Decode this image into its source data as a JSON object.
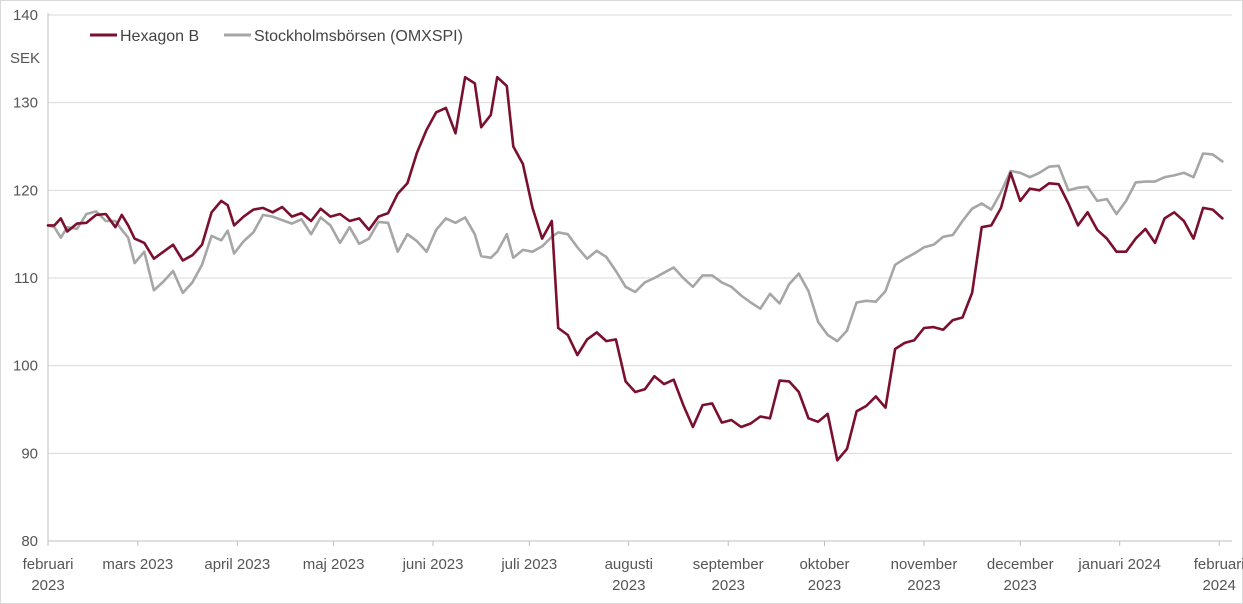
{
  "chart_data": {
    "type": "line",
    "ylabel": "SEK",
    "ylim": [
      80,
      140
    ],
    "y_ticks": [
      "80",
      "90",
      "100",
      "110",
      "120",
      "130",
      "140"
    ],
    "grid": "horizontal",
    "legend_position": "top-left",
    "x_axis": {
      "range": [
        "2023-02-01",
        "2024-02-05"
      ],
      "ticks": [
        {
          "date": "2023-02-01",
          "line1": "februari",
          "line2": "2023"
        },
        {
          "date": "2023-03-01",
          "line1": "mars 2023",
          "line2": ""
        },
        {
          "date": "2023-04-01",
          "line1": "april 2023",
          "line2": ""
        },
        {
          "date": "2023-05-01",
          "line1": "maj 2023",
          "line2": ""
        },
        {
          "date": "2023-06-01",
          "line1": "juni 2023",
          "line2": ""
        },
        {
          "date": "2023-07-01",
          "line1": "juli 2023",
          "line2": ""
        },
        {
          "date": "2023-08-01",
          "line1": "augusti",
          "line2": "2023"
        },
        {
          "date": "2023-09-01",
          "line1": "september",
          "line2": "2023"
        },
        {
          "date": "2023-10-01",
          "line1": "oktober",
          "line2": "2023"
        },
        {
          "date": "2023-11-01",
          "line1": "november",
          "line2": "2023"
        },
        {
          "date": "2023-12-01",
          "line1": "december",
          "line2": "2023"
        },
        {
          "date": "2024-01-01",
          "line1": "januari 2024",
          "line2": ""
        },
        {
          "date": "2024-02-01",
          "line1": "februari",
          "line2": "2024"
        }
      ]
    },
    "series": [
      {
        "name": "Hexagon B",
        "color": "#7a0f2e",
        "points": [
          [
            "2023-02-01",
            116.0
          ],
          [
            "2023-02-03",
            116.0
          ],
          [
            "2023-02-05",
            116.8
          ],
          [
            "2023-02-07",
            115.3
          ],
          [
            "2023-02-10",
            116.2
          ],
          [
            "2023-02-13",
            116.3
          ],
          [
            "2023-02-16",
            117.2
          ],
          [
            "2023-02-19",
            117.3
          ],
          [
            "2023-02-22",
            115.8
          ],
          [
            "2023-02-24",
            117.2
          ],
          [
            "2023-02-26",
            116.0
          ],
          [
            "2023-02-28",
            114.5
          ],
          [
            "2023-03-03",
            114.0
          ],
          [
            "2023-03-06",
            112.2
          ],
          [
            "2023-03-09",
            113.0
          ],
          [
            "2023-03-12",
            113.8
          ],
          [
            "2023-03-15",
            112.0
          ],
          [
            "2023-03-18",
            112.6
          ],
          [
            "2023-03-21",
            113.8
          ],
          [
            "2023-03-24",
            117.5
          ],
          [
            "2023-03-27",
            118.8
          ],
          [
            "2023-03-29",
            118.3
          ],
          [
            "2023-03-31",
            116.0
          ],
          [
            "2023-04-03",
            117.0
          ],
          [
            "2023-04-06",
            117.8
          ],
          [
            "2023-04-09",
            118.0
          ],
          [
            "2023-04-12",
            117.5
          ],
          [
            "2023-04-15",
            118.1
          ],
          [
            "2023-04-18",
            117.0
          ],
          [
            "2023-04-21",
            117.4
          ],
          [
            "2023-04-24",
            116.5
          ],
          [
            "2023-04-27",
            117.9
          ],
          [
            "2023-04-30",
            117.0
          ],
          [
            "2023-05-03",
            117.3
          ],
          [
            "2023-05-06",
            116.5
          ],
          [
            "2023-05-09",
            116.8
          ],
          [
            "2023-05-12",
            115.5
          ],
          [
            "2023-05-15",
            117.0
          ],
          [
            "2023-05-18",
            117.4
          ],
          [
            "2023-05-21",
            119.6
          ],
          [
            "2023-05-24",
            120.8
          ],
          [
            "2023-05-27",
            124.3
          ],
          [
            "2023-05-30",
            126.9
          ],
          [
            "2023-06-02",
            128.9
          ],
          [
            "2023-06-05",
            129.4
          ],
          [
            "2023-06-08",
            126.5
          ],
          [
            "2023-06-11",
            132.9
          ],
          [
            "2023-06-14",
            132.2
          ],
          [
            "2023-06-16",
            127.2
          ],
          [
            "2023-06-19",
            128.6
          ],
          [
            "2023-06-21",
            132.9
          ],
          [
            "2023-06-24",
            131.9
          ],
          [
            "2023-06-26",
            125.0
          ],
          [
            "2023-06-29",
            123.0
          ],
          [
            "2023-07-02",
            118.0
          ],
          [
            "2023-07-05",
            114.5
          ],
          [
            "2023-07-08",
            116.5
          ],
          [
            "2023-07-10",
            104.3
          ],
          [
            "2023-07-13",
            103.5
          ],
          [
            "2023-07-16",
            101.2
          ],
          [
            "2023-07-19",
            103.0
          ],
          [
            "2023-07-22",
            103.8
          ],
          [
            "2023-07-25",
            102.8
          ],
          [
            "2023-07-28",
            103.0
          ],
          [
            "2023-07-31",
            98.2
          ],
          [
            "2023-08-03",
            97.0
          ],
          [
            "2023-08-06",
            97.3
          ],
          [
            "2023-08-09",
            98.8
          ],
          [
            "2023-08-12",
            97.9
          ],
          [
            "2023-08-15",
            98.4
          ],
          [
            "2023-08-18",
            95.5
          ],
          [
            "2023-08-21",
            93.0
          ],
          [
            "2023-08-24",
            95.5
          ],
          [
            "2023-08-27",
            95.7
          ],
          [
            "2023-08-30",
            93.5
          ],
          [
            "2023-09-02",
            93.8
          ],
          [
            "2023-09-05",
            93.0
          ],
          [
            "2023-09-08",
            93.4
          ],
          [
            "2023-09-11",
            94.2
          ],
          [
            "2023-09-14",
            94.0
          ],
          [
            "2023-09-17",
            98.3
          ],
          [
            "2023-09-20",
            98.2
          ],
          [
            "2023-09-23",
            97.0
          ],
          [
            "2023-09-26",
            94.0
          ],
          [
            "2023-09-29",
            93.6
          ],
          [
            "2023-10-02",
            94.5
          ],
          [
            "2023-10-05",
            89.2
          ],
          [
            "2023-10-08",
            90.5
          ],
          [
            "2023-10-11",
            94.8
          ],
          [
            "2023-10-14",
            95.4
          ],
          [
            "2023-10-17",
            96.5
          ],
          [
            "2023-10-20",
            95.2
          ],
          [
            "2023-10-23",
            101.9
          ],
          [
            "2023-10-26",
            102.6
          ],
          [
            "2023-10-29",
            102.9
          ],
          [
            "2023-11-01",
            104.3
          ],
          [
            "2023-11-04",
            104.4
          ],
          [
            "2023-11-07",
            104.1
          ],
          [
            "2023-11-10",
            105.2
          ],
          [
            "2023-11-13",
            105.5
          ],
          [
            "2023-11-16",
            108.3
          ],
          [
            "2023-11-19",
            115.8
          ],
          [
            "2023-11-22",
            116.0
          ],
          [
            "2023-11-25",
            118.0
          ],
          [
            "2023-11-28",
            122.0
          ],
          [
            "2023-12-01",
            118.8
          ],
          [
            "2023-12-04",
            120.2
          ],
          [
            "2023-12-07",
            120.0
          ],
          [
            "2023-12-10",
            120.8
          ],
          [
            "2023-12-13",
            120.7
          ],
          [
            "2023-12-16",
            118.5
          ],
          [
            "2023-12-19",
            116.0
          ],
          [
            "2023-12-22",
            117.5
          ],
          [
            "2023-12-25",
            115.5
          ],
          [
            "2023-12-28",
            114.5
          ],
          [
            "2023-12-31",
            113.0
          ],
          [
            "2024-01-03",
            113.0
          ],
          [
            "2024-01-06",
            114.5
          ],
          [
            "2024-01-09",
            115.6
          ],
          [
            "2024-01-12",
            114.0
          ],
          [
            "2024-01-15",
            116.8
          ],
          [
            "2024-01-18",
            117.5
          ],
          [
            "2024-01-21",
            116.5
          ],
          [
            "2024-01-24",
            114.5
          ],
          [
            "2024-01-27",
            118.0
          ],
          [
            "2024-01-30",
            117.8
          ],
          [
            "2024-02-02",
            116.8
          ]
        ]
      },
      {
        "name": "Stockholmsbörsen (OMXSPI)",
        "color": "#a6a6a6",
        "points": [
          [
            "2023-02-01",
            116.0
          ],
          [
            "2023-02-03",
            115.8
          ],
          [
            "2023-02-05",
            114.6
          ],
          [
            "2023-02-07",
            115.8
          ],
          [
            "2023-02-10",
            115.6
          ],
          [
            "2023-02-13",
            117.3
          ],
          [
            "2023-02-16",
            117.6
          ],
          [
            "2023-02-19",
            116.5
          ],
          [
            "2023-02-22",
            116.5
          ],
          [
            "2023-02-24",
            115.5
          ],
          [
            "2023-02-26",
            114.6
          ],
          [
            "2023-02-28",
            111.7
          ],
          [
            "2023-03-03",
            113.0
          ],
          [
            "2023-03-06",
            108.6
          ],
          [
            "2023-03-09",
            109.6
          ],
          [
            "2023-03-12",
            110.8
          ],
          [
            "2023-03-15",
            108.3
          ],
          [
            "2023-03-18",
            109.5
          ],
          [
            "2023-03-21",
            111.5
          ],
          [
            "2023-03-24",
            114.8
          ],
          [
            "2023-03-27",
            114.3
          ],
          [
            "2023-03-29",
            115.4
          ],
          [
            "2023-03-31",
            112.8
          ],
          [
            "2023-04-03",
            114.2
          ],
          [
            "2023-04-06",
            115.2
          ],
          [
            "2023-04-09",
            117.2
          ],
          [
            "2023-04-12",
            117.0
          ],
          [
            "2023-04-15",
            116.6
          ],
          [
            "2023-04-18",
            116.2
          ],
          [
            "2023-04-21",
            116.7
          ],
          [
            "2023-04-24",
            115.0
          ],
          [
            "2023-04-27",
            116.9
          ],
          [
            "2023-04-30",
            116.0
          ],
          [
            "2023-05-03",
            114.0
          ],
          [
            "2023-05-06",
            115.8
          ],
          [
            "2023-05-09",
            113.9
          ],
          [
            "2023-05-12",
            114.5
          ],
          [
            "2023-05-15",
            116.4
          ],
          [
            "2023-05-18",
            116.3
          ],
          [
            "2023-05-21",
            113.0
          ],
          [
            "2023-05-24",
            115.0
          ],
          [
            "2023-05-27",
            114.2
          ],
          [
            "2023-05-30",
            113.0
          ],
          [
            "2023-06-02",
            115.5
          ],
          [
            "2023-06-05",
            116.8
          ],
          [
            "2023-06-08",
            116.3
          ],
          [
            "2023-06-11",
            116.9
          ],
          [
            "2023-06-14",
            115.0
          ],
          [
            "2023-06-16",
            112.5
          ],
          [
            "2023-06-19",
            112.3
          ],
          [
            "2023-06-21",
            113.0
          ],
          [
            "2023-06-24",
            115.0
          ],
          [
            "2023-06-26",
            112.3
          ],
          [
            "2023-06-29",
            113.2
          ],
          [
            "2023-07-02",
            113.0
          ],
          [
            "2023-07-05",
            113.6
          ],
          [
            "2023-07-08",
            114.7
          ],
          [
            "2023-07-10",
            115.2
          ],
          [
            "2023-07-13",
            115.0
          ],
          [
            "2023-07-16",
            113.5
          ],
          [
            "2023-07-19",
            112.2
          ],
          [
            "2023-07-22",
            113.1
          ],
          [
            "2023-07-25",
            112.4
          ],
          [
            "2023-07-28",
            110.8
          ],
          [
            "2023-07-31",
            109.0
          ],
          [
            "2023-08-03",
            108.4
          ],
          [
            "2023-08-06",
            109.5
          ],
          [
            "2023-08-09",
            110.0
          ],
          [
            "2023-08-12",
            110.6
          ],
          [
            "2023-08-15",
            111.2
          ],
          [
            "2023-08-18",
            110.0
          ],
          [
            "2023-08-21",
            109.0
          ],
          [
            "2023-08-24",
            110.3
          ],
          [
            "2023-08-27",
            110.3
          ],
          [
            "2023-08-30",
            109.5
          ],
          [
            "2023-09-02",
            109.0
          ],
          [
            "2023-09-05",
            108.0
          ],
          [
            "2023-09-08",
            107.2
          ],
          [
            "2023-09-11",
            106.5
          ],
          [
            "2023-09-14",
            108.2
          ],
          [
            "2023-09-17",
            107.1
          ],
          [
            "2023-09-20",
            109.3
          ],
          [
            "2023-09-23",
            110.5
          ],
          [
            "2023-09-26",
            108.5
          ],
          [
            "2023-09-29",
            105.0
          ],
          [
            "2023-10-02",
            103.5
          ],
          [
            "2023-10-05",
            102.8
          ],
          [
            "2023-10-08",
            104.0
          ],
          [
            "2023-10-11",
            107.2
          ],
          [
            "2023-10-14",
            107.4
          ],
          [
            "2023-10-17",
            107.3
          ],
          [
            "2023-10-20",
            108.5
          ],
          [
            "2023-10-23",
            111.5
          ],
          [
            "2023-10-26",
            112.2
          ],
          [
            "2023-10-29",
            112.8
          ],
          [
            "2023-11-01",
            113.5
          ],
          [
            "2023-11-04",
            113.8
          ],
          [
            "2023-11-07",
            114.7
          ],
          [
            "2023-11-10",
            114.9
          ],
          [
            "2023-11-13",
            116.5
          ],
          [
            "2023-11-16",
            117.9
          ],
          [
            "2023-11-19",
            118.5
          ],
          [
            "2023-11-22",
            117.8
          ],
          [
            "2023-11-25",
            119.8
          ],
          [
            "2023-11-28",
            122.2
          ],
          [
            "2023-12-01",
            122.0
          ],
          [
            "2023-12-04",
            121.5
          ],
          [
            "2023-12-07",
            122.0
          ],
          [
            "2023-12-10",
            122.7
          ],
          [
            "2023-12-13",
            122.8
          ],
          [
            "2023-12-16",
            120.0
          ],
          [
            "2023-12-19",
            120.3
          ],
          [
            "2023-12-22",
            120.4
          ],
          [
            "2023-12-25",
            118.8
          ],
          [
            "2023-12-28",
            119.0
          ],
          [
            "2023-12-31",
            117.3
          ],
          [
            "2024-01-03",
            118.8
          ],
          [
            "2024-01-06",
            120.9
          ],
          [
            "2024-01-09",
            121.0
          ],
          [
            "2024-01-12",
            121.0
          ],
          [
            "2024-01-15",
            121.5
          ],
          [
            "2024-01-18",
            121.7
          ],
          [
            "2024-01-21",
            122.0
          ],
          [
            "2024-01-24",
            121.5
          ],
          [
            "2024-01-27",
            124.2
          ],
          [
            "2024-01-30",
            124.1
          ],
          [
            "2024-02-02",
            123.3
          ]
        ]
      }
    ]
  }
}
